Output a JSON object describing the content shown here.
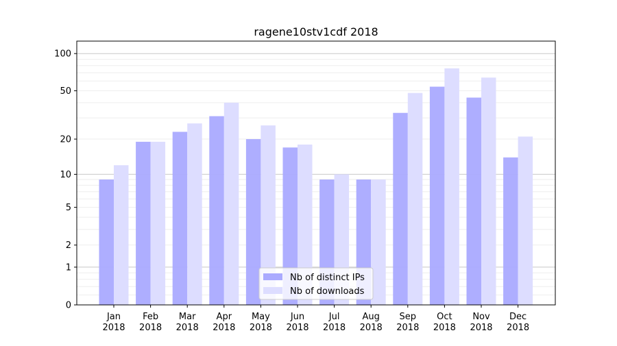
{
  "chart_data": {
    "type": "bar",
    "title": "ragene10stv1cdf 2018",
    "xlabel": "",
    "ylabel": "",
    "yscale": "log(1+y)",
    "ylim": [
      0,
      126
    ],
    "yticks": [
      0,
      1,
      2,
      5,
      10,
      20,
      50,
      100
    ],
    "grid": true,
    "legend_position": "bottom-center",
    "categories": [
      "Jan\n2018",
      "Feb\n2018",
      "Mar\n2018",
      "Apr\n2018",
      "May\n2018",
      "Jun\n2018",
      "Jul\n2018",
      "Aug\n2018",
      "Sep\n2018",
      "Oct\n2018",
      "Nov\n2018",
      "Dec\n2018"
    ],
    "series": [
      {
        "name": "Nb of distinct IPs",
        "color": "#aaaaff",
        "values": [
          9,
          19,
          23,
          31,
          20,
          17,
          9,
          9,
          33,
          54,
          44,
          14
        ]
      },
      {
        "name": "Nb of downloads",
        "color": "#ddddff",
        "values": [
          12,
          19,
          27,
          40,
          26,
          18,
          10,
          9,
          48,
          76,
          64,
          21
        ]
      }
    ]
  }
}
